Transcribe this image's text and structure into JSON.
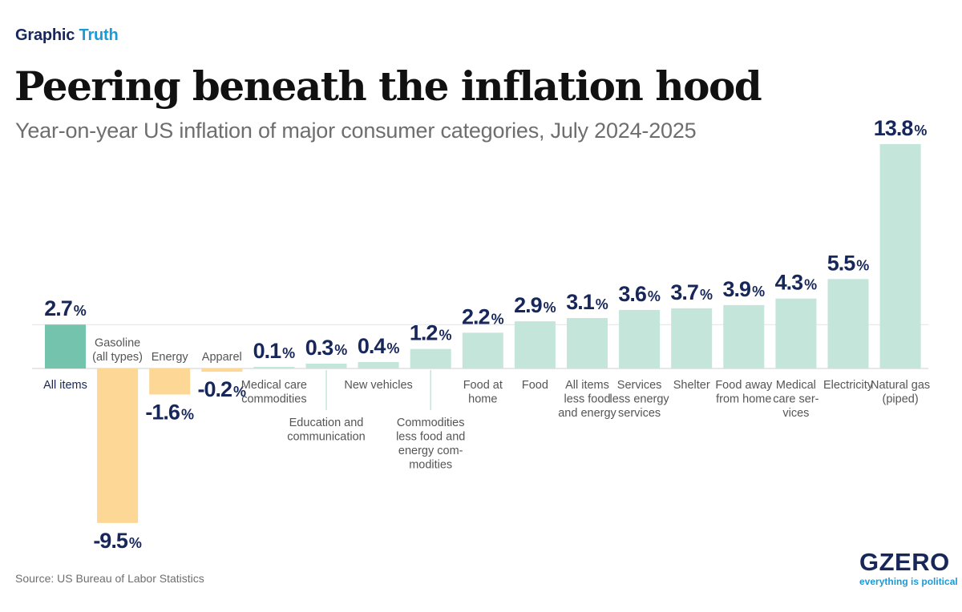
{
  "header": {
    "kicker_part1": "Graphic",
    "kicker_part2": "Truth",
    "title": "Peering beneath the inflation hood",
    "subtitle": "Year-on-year US inflation of major consumer categories, July 2024-2025"
  },
  "footer": {
    "source": "Source: US Bureau of Labor Statistics",
    "logo_word": "GZERO",
    "logo_tagline": "everything is political"
  },
  "colors": {
    "highlight_bar": "#74c4ad",
    "positive_bar": "#c3e5da",
    "negative_bar": "#fdd795",
    "value_text": "#17275a",
    "category_text": "#555555",
    "highlight_label": "#17275a"
  },
  "chart_data": {
    "type": "bar",
    "title": "Year-on-year US inflation of major consumer categories, July 2024-2025",
    "xlabel": "",
    "ylabel": "",
    "unit": "%",
    "ylim": [
      -9.5,
      13.8
    ],
    "grid": false,
    "highlight": "All items",
    "reference_line_value": 2.7,
    "categories": [
      "All items",
      "Gasoline (all types)",
      "Energy",
      "Apparel",
      "Medical care commodities",
      "Education and communication",
      "New vehicles",
      "Commodities less food and energy commodities",
      "Food at home",
      "Food",
      "All items less food and energy",
      "Services less energy services",
      "Shelter",
      "Food away from home",
      "Medical care services",
      "Electricity",
      "Natural gas (piped)"
    ],
    "values": [
      2.7,
      -9.5,
      -1.6,
      -0.2,
      0.1,
      0.3,
      0.4,
      1.2,
      2.2,
      2.9,
      3.1,
      3.6,
      3.7,
      3.9,
      4.3,
      5.5,
      13.8
    ],
    "value_labels": [
      "2.7",
      "-9.5",
      "-1.6",
      "-0.2",
      "0.1",
      "0.3",
      "0.4",
      "1.2",
      "2.2",
      "2.9",
      "3.1",
      "3.6",
      "3.7",
      "3.9",
      "4.3",
      "5.5",
      "13.8"
    ],
    "label_lines": [
      [
        "All items"
      ],
      [
        "Gasoline",
        "(all types)"
      ],
      [
        "Energy"
      ],
      [
        "Apparel"
      ],
      [
        "Medical care",
        "commodities"
      ],
      [
        "Education and",
        "communication"
      ],
      [
        "New vehicles"
      ],
      [
        "Commodities",
        "less food and",
        "energy com-",
        "modities"
      ],
      [
        "Food at",
        "home"
      ],
      [
        "Food"
      ],
      [
        "All items",
        "less food",
        "and energy"
      ],
      [
        "Services",
        "less energy",
        "services"
      ],
      [
        "Shelter"
      ],
      [
        "Food away",
        "from home"
      ],
      [
        "Medical",
        "care ser-",
        "vices"
      ],
      [
        "Electricity"
      ],
      [
        "Natural gas",
        "(piped)"
      ]
    ]
  }
}
